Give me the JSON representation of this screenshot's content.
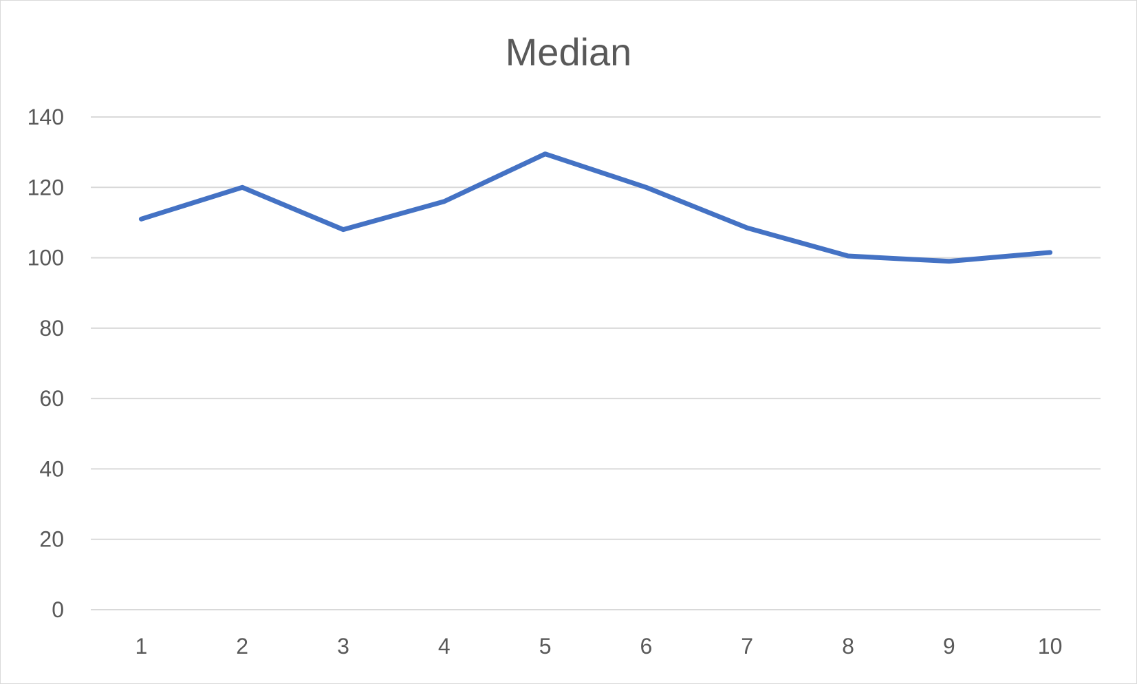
{
  "chart_data": {
    "type": "line",
    "title": "Median",
    "xlabel": "",
    "ylabel": "",
    "categories": [
      "1",
      "2",
      "3",
      "4",
      "5",
      "6",
      "7",
      "8",
      "9",
      "10"
    ],
    "series": [
      {
        "values": [
          111,
          120,
          108,
          116,
          129.5,
          120,
          108.5,
          100.5,
          99,
          101.5
        ],
        "color": "#4472C4"
      }
    ],
    "ylim": [
      0,
      140
    ],
    "yticks": [
      0,
      20,
      40,
      60,
      80,
      100,
      120,
      140
    ],
    "grid": true,
    "gridline_color": "#d9d9d9",
    "legend": "none"
  }
}
